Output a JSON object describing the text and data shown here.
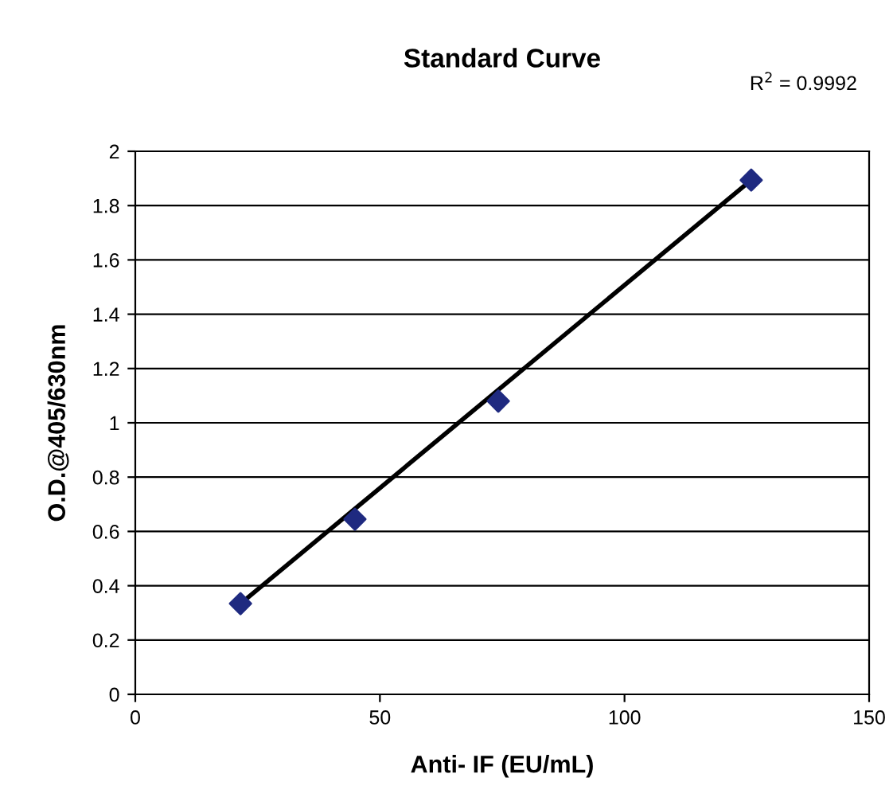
{
  "chart_data": {
    "type": "scatter",
    "title": "Standard Curve",
    "xlabel": "Anti- IF (EU/mL)",
    "ylabel": "O.D.@405/630nm",
    "annotations": [
      "R$^{2}$ = 0.9992"
    ],
    "series": [
      {
        "color": "#1f2a80",
        "marker": "diamond",
        "x": [
          21.5,
          44.9,
          74.2,
          125.9
        ],
        "values": [
          0.334,
          0.645,
          1.08,
          1.894
        ]
      },
      {
        "type": "line",
        "color": "#000000",
        "marker": "none",
        "line_style": "solid",
        "x": [
          21.5,
          125.9
        ],
        "values": [
          0.334,
          1.894
        ]
      }
    ],
    "xlim": [
      0,
      150
    ],
    "xticks": [
      0,
      50,
      100,
      150
    ],
    "ylim": [
      0,
      2
    ],
    "yticks": [
      0,
      0.2,
      0.4,
      0.6,
      0.8,
      1,
      1.2,
      1.4,
      1.6,
      1.8,
      2
    ],
    "grid": "y",
    "legend": false
  }
}
